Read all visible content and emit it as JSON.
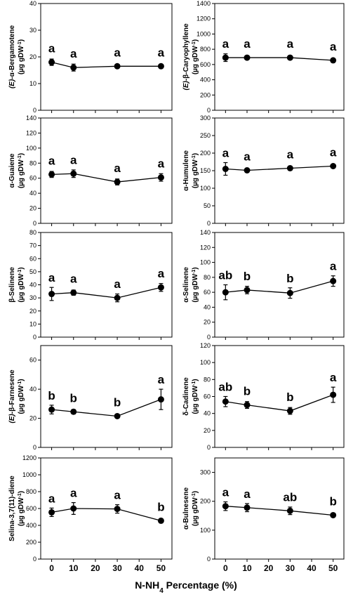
{
  "figure": {
    "xlabel_main": "N-NH",
    "xlabel_sub": "4",
    "xlabel_tail": " Percentage (%)",
    "x_ticks": [
      0,
      10,
      20,
      30,
      40,
      50
    ],
    "unit_label_pre": "(µg gDW",
    "unit_label_sup": "-1",
    "unit_label_post": ")"
  },
  "chart_data": [
    {
      "type": "scatter",
      "ylabel_prefix": "(E)-",
      "ylabel": "α-Bergamotene",
      "ylim": [
        0,
        40
      ],
      "yticks": [
        0,
        10,
        20,
        30,
        40
      ],
      "x": [
        0,
        10,
        30,
        50
      ],
      "y": [
        18,
        16,
        16.5,
        16.5
      ],
      "err": [
        1.2,
        1.3,
        0.6,
        0.5
      ],
      "letters": [
        "a",
        "a",
        "a",
        "a"
      ]
    },
    {
      "type": "scatter",
      "ylabel_prefix": "(E)-",
      "ylabel": "β-Caryophyllene",
      "ylim": [
        0,
        1400
      ],
      "yticks": [
        0,
        200,
        400,
        600,
        800,
        1000,
        1200,
        1400
      ],
      "x": [
        0,
        10,
        30,
        50
      ],
      "y": [
        690,
        690,
        690,
        655
      ],
      "err": [
        50,
        25,
        25,
        20
      ],
      "letters": [
        "a",
        "a",
        "a",
        "a"
      ]
    },
    {
      "type": "scatter",
      "ylabel_prefix": "",
      "ylabel": "α-Guaiene",
      "ylim": [
        0,
        140
      ],
      "yticks": [
        0,
        20,
        40,
        60,
        80,
        100,
        120,
        140
      ],
      "x": [
        0,
        10,
        30,
        50
      ],
      "y": [
        65,
        66,
        55,
        61
      ],
      "err": [
        4,
        5,
        4,
        5
      ],
      "letters": [
        "a",
        "a",
        "a",
        "a"
      ]
    },
    {
      "type": "scatter",
      "ylabel_prefix": "",
      "ylabel": "α-Humulene",
      "ylim": [
        0,
        300
      ],
      "yticks": [
        0,
        50,
        100,
        150,
        200,
        250,
        300
      ],
      "x": [
        0,
        10,
        30,
        50
      ],
      "y": [
        155,
        151,
        157,
        163
      ],
      "err": [
        18,
        6,
        6,
        5
      ],
      "letters": [
        "a",
        "a",
        "a",
        "a"
      ]
    },
    {
      "type": "scatter",
      "ylabel_prefix": "",
      "ylabel": "β-Selinene",
      "ylim": [
        0,
        80
      ],
      "yticks": [
        0,
        10,
        20,
        30,
        40,
        50,
        60,
        70,
        80
      ],
      "x": [
        0,
        10,
        30,
        50
      ],
      "y": [
        33,
        34,
        30,
        38
      ],
      "err": [
        5,
        2,
        3,
        3
      ],
      "letters": [
        "a",
        "a",
        "a",
        "a"
      ]
    },
    {
      "type": "scatter",
      "ylabel_prefix": "",
      "ylabel": "α-Selinene",
      "ylim": [
        0,
        140
      ],
      "yticks": [
        0,
        20,
        40,
        60,
        80,
        100,
        120,
        140
      ],
      "x": [
        0,
        10,
        30,
        50
      ],
      "y": [
        60,
        63,
        59,
        75
      ],
      "err": [
        10,
        5,
        7,
        7
      ],
      "letters": [
        "ab",
        "b",
        "b",
        "a"
      ]
    },
    {
      "type": "scatter",
      "ylabel_prefix": "(E)-",
      "ylabel": "β-Farnesene",
      "ylim": [
        0,
        70
      ],
      "yticks": [
        0,
        20,
        40,
        60
      ],
      "x": [
        0,
        10,
        30,
        50
      ],
      "y": [
        26,
        24.5,
        21.5,
        33
      ],
      "err": [
        3,
        1.5,
        1,
        7
      ],
      "letters": [
        "b",
        "b",
        "b",
        "a"
      ]
    },
    {
      "type": "scatter",
      "ylabel_prefix": "",
      "ylabel": "δ-Cadinene",
      "ylim": [
        0,
        120
      ],
      "yticks": [
        0,
        20,
        40,
        60,
        80,
        100,
        120
      ],
      "x": [
        0,
        10,
        30,
        50
      ],
      "y": [
        54,
        50,
        43,
        62
      ],
      "err": [
        6,
        4,
        4,
        9
      ],
      "letters": [
        "ab",
        "b",
        "b",
        "a"
      ]
    },
    {
      "type": "scatter",
      "ylabel_prefix": "",
      "ylabel": "Selina-3,7(11)-diene",
      "ylim": [
        0,
        1200
      ],
      "yticks": [
        0,
        200,
        400,
        600,
        800,
        1000,
        1200
      ],
      "x": [
        0,
        10,
        30,
        50
      ],
      "y": [
        555,
        600,
        595,
        455
      ],
      "err": [
        50,
        70,
        50,
        20
      ],
      "letters": [
        "a",
        "a",
        "a",
        "b"
      ]
    },
    {
      "type": "scatter",
      "ylabel_prefix": "",
      "ylabel": "α-Bulnesene",
      "ylim": [
        0,
        350
      ],
      "yticks": [
        0,
        100,
        200,
        300
      ],
      "x": [
        0,
        10,
        30,
        50
      ],
      "y": [
        183,
        178,
        167,
        152
      ],
      "err": [
        15,
        14,
        13,
        5
      ],
      "letters": [
        "a",
        "a",
        "ab",
        "b"
      ]
    }
  ]
}
